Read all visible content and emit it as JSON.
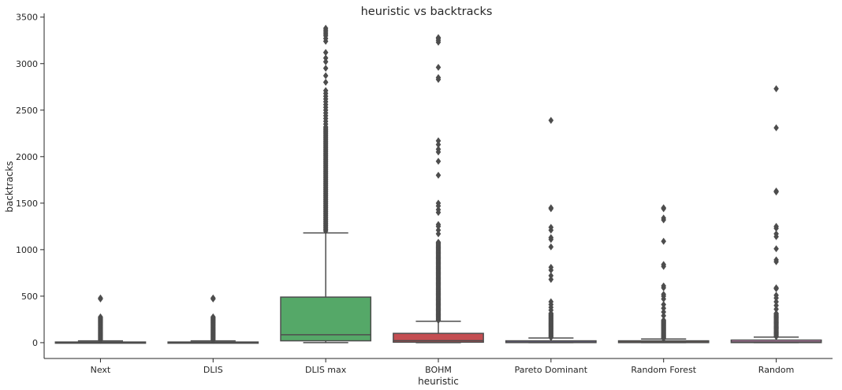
{
  "chart_data": {
    "type": "box",
    "title": "heuristic vs backtracks",
    "xlabel": "heuristic",
    "ylabel": "backtracks",
    "ylim": [
      -170,
      3540
    ],
    "yticks": [
      0,
      500,
      1000,
      1500,
      2000,
      2500,
      3000,
      3500
    ],
    "grid": false,
    "legend": "none",
    "categories": [
      "Next",
      "DLIS",
      "DLIS max",
      "BOHM",
      "Pareto Dominant",
      "Random Forest",
      "Random"
    ],
    "colors": [
      "#4c72b0",
      "#dd8452",
      "#55a868",
      "#c44e52",
      "#8172b3",
      "#937860",
      "#da8bc3"
    ],
    "line_color": "#4d4d4d",
    "boxes": [
      {
        "category": "Next",
        "whisker_low": 0,
        "q1": 1,
        "median": 3,
        "q3": 7,
        "whisker_high": 20,
        "outliers": [
          {
            "from": 25,
            "to": 280,
            "step": 9
          },
          470,
          480
        ]
      },
      {
        "category": "DLIS",
        "whisker_low": 0,
        "q1": 1,
        "median": 3,
        "q3": 7,
        "whisker_high": 20,
        "outliers": [
          {
            "from": 25,
            "to": 280,
            "step": 9
          },
          470,
          480
        ]
      },
      {
        "category": "DLIS max",
        "whisker_low": 0,
        "q1": 20,
        "median": 85,
        "q3": 490,
        "whisker_high": 1180,
        "outliers": [
          {
            "from": 1200,
            "to": 2320,
            "step": 14
          },
          {
            "from": 2350,
            "to": 2720,
            "step": 30
          },
          2800,
          2870,
          2950,
          3020,
          3060,
          3120,
          3240,
          3270,
          3300,
          3320,
          3340,
          3360,
          3380
        ]
      },
      {
        "category": "BOHM",
        "whisker_low": 0,
        "q1": 5,
        "median": 22,
        "q3": 100,
        "whisker_high": 230,
        "outliers": [
          {
            "from": 240,
            "to": 1080,
            "step": 10
          },
          1170,
          1210,
          1250,
          1270,
          1400,
          1430,
          1470,
          1500,
          1800,
          1950,
          2050,
          2080,
          2130,
          2170,
          2830,
          2850,
          2960,
          3230,
          3250,
          3270,
          3280
        ]
      },
      {
        "category": "Pareto Dominant",
        "whisker_low": 0,
        "q1": 1,
        "median": 5,
        "q3": 20,
        "whisker_high": 50,
        "outliers": [
          {
            "from": 55,
            "to": 320,
            "step": 9
          },
          350,
          380,
          410,
          440,
          680,
          720,
          780,
          810,
          1030,
          1110,
          1130,
          1210,
          1240,
          1440,
          1450,
          2390
        ]
      },
      {
        "category": "Random Forest",
        "whisker_low": 0,
        "q1": 1,
        "median": 6,
        "q3": 20,
        "whisker_high": 40,
        "outliers": [
          {
            "from": 45,
            "to": 250,
            "step": 9
          },
          290,
          330,
          370,
          410,
          470,
          500,
          520,
          590,
          610,
          820,
          840,
          1090,
          1320,
          1340,
          1440,
          1450
        ]
      },
      {
        "category": "Random",
        "whisker_low": 0,
        "q1": 1,
        "median": 8,
        "q3": 28,
        "whisker_high": 60,
        "outliers": [
          {
            "from": 65,
            "to": 320,
            "step": 10
          },
          360,
          400,
          440,
          480,
          510,
          580,
          590,
          870,
          890,
          1010,
          1140,
          1170,
          1230,
          1250,
          1620,
          1630,
          2310,
          2730
        ]
      }
    ]
  }
}
